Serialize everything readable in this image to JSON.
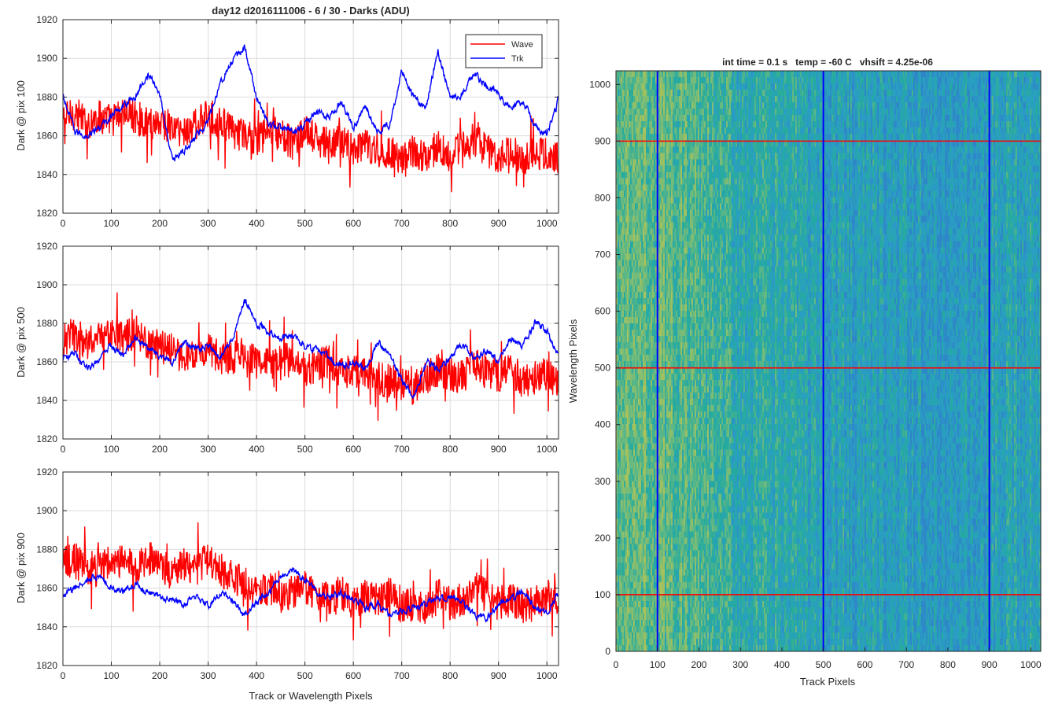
{
  "figure_title": "day12 d2016111006 - 6 / 30 - Darks (ADU)",
  "chart_data": [
    {
      "type": "line",
      "id": "dark-pix-100",
      "title": "day12 d2016111006 - 6 / 30 - Darks (ADU)",
      "xlabel": "",
      "ylabel": "Dark @ pix 100",
      "xlim": [
        0,
        1024
      ],
      "ylim": [
        1820,
        1920
      ],
      "xticks": [
        0,
        100,
        200,
        300,
        400,
        500,
        600,
        700,
        800,
        900,
        1000
      ],
      "yticks": [
        1820,
        1840,
        1860,
        1880,
        1900,
        1920
      ],
      "grid": true,
      "legend": "top-right",
      "series": [
        {
          "name": "Wave",
          "color": "#ff0000",
          "x": [
            0,
            25,
            50,
            75,
            100,
            125,
            150,
            175,
            200,
            225,
            250,
            275,
            300,
            325,
            350,
            375,
            400,
            425,
            450,
            475,
            500,
            525,
            550,
            575,
            600,
            625,
            650,
            675,
            700,
            725,
            750,
            775,
            800,
            825,
            850,
            875,
            900,
            925,
            950,
            975,
            1000,
            1023
          ],
          "y": [
            1868,
            1872,
            1866,
            1870,
            1868,
            1872,
            1870,
            1866,
            1868,
            1864,
            1862,
            1866,
            1870,
            1868,
            1862,
            1860,
            1858,
            1862,
            1860,
            1856,
            1862,
            1858,
            1855,
            1858,
            1852,
            1856,
            1850,
            1852,
            1848,
            1852,
            1850,
            1854,
            1850,
            1854,
            1858,
            1852,
            1850,
            1852,
            1848,
            1852,
            1850,
            1848
          ],
          "noise": 9
        },
        {
          "name": "Trk",
          "color": "#0000ff",
          "x": [
            0,
            25,
            50,
            75,
            100,
            125,
            150,
            175,
            200,
            225,
            250,
            275,
            300,
            325,
            350,
            375,
            400,
            425,
            450,
            475,
            500,
            525,
            550,
            575,
            600,
            625,
            650,
            675,
            700,
            725,
            750,
            775,
            800,
            825,
            850,
            875,
            900,
            925,
            950,
            975,
            1000,
            1023
          ],
          "y": [
            1880,
            1862,
            1860,
            1864,
            1870,
            1876,
            1880,
            1892,
            1882,
            1848,
            1852,
            1860,
            1868,
            1888,
            1898,
            1906,
            1880,
            1866,
            1864,
            1862,
            1866,
            1872,
            1870,
            1878,
            1864,
            1876,
            1862,
            1866,
            1894,
            1880,
            1874,
            1904,
            1880,
            1882,
            1892,
            1886,
            1882,
            1874,
            1878,
            1866,
            1860,
            1878
          ],
          "noise": 3
        }
      ]
    },
    {
      "type": "line",
      "id": "dark-pix-500",
      "title": "",
      "xlabel": "",
      "ylabel": "Dark @ pix 500",
      "xlim": [
        0,
        1024
      ],
      "ylim": [
        1820,
        1920
      ],
      "xticks": [
        0,
        100,
        200,
        300,
        400,
        500,
        600,
        700,
        800,
        900,
        1000
      ],
      "yticks": [
        1820,
        1840,
        1860,
        1880,
        1900,
        1920
      ],
      "grid": true,
      "series": [
        {
          "name": "Wave",
          "color": "#ff0000",
          "x": [
            0,
            25,
            50,
            75,
            100,
            125,
            150,
            175,
            200,
            225,
            250,
            275,
            300,
            325,
            350,
            375,
            400,
            425,
            450,
            475,
            500,
            525,
            550,
            575,
            600,
            625,
            650,
            675,
            700,
            725,
            750,
            775,
            800,
            825,
            850,
            875,
            900,
            925,
            950,
            975,
            1000,
            1023
          ],
          "y": [
            1872,
            1874,
            1870,
            1872,
            1874,
            1872,
            1876,
            1870,
            1868,
            1866,
            1862,
            1864,
            1866,
            1862,
            1862,
            1864,
            1860,
            1858,
            1862,
            1860,
            1856,
            1858,
            1860,
            1854,
            1856,
            1854,
            1852,
            1850,
            1848,
            1846,
            1852,
            1856,
            1854,
            1852,
            1858,
            1856,
            1852,
            1856,
            1850,
            1852,
            1854,
            1850
          ],
          "noise": 9
        },
        {
          "name": "Trk",
          "color": "#0000ff",
          "x": [
            0,
            25,
            50,
            75,
            100,
            125,
            150,
            175,
            200,
            225,
            250,
            275,
            300,
            325,
            350,
            375,
            400,
            425,
            450,
            475,
            500,
            525,
            550,
            575,
            600,
            625,
            650,
            675,
            700,
            725,
            750,
            775,
            800,
            825,
            850,
            875,
            900,
            925,
            950,
            975,
            1000,
            1023
          ],
          "y": [
            1862,
            1864,
            1856,
            1862,
            1868,
            1864,
            1872,
            1868,
            1864,
            1860,
            1870,
            1866,
            1868,
            1862,
            1872,
            1892,
            1880,
            1876,
            1872,
            1874,
            1868,
            1866,
            1862,
            1858,
            1860,
            1856,
            1870,
            1864,
            1850,
            1842,
            1860,
            1856,
            1862,
            1870,
            1862,
            1866,
            1860,
            1872,
            1868,
            1880,
            1876,
            1864
          ],
          "noise": 3
        }
      ]
    },
    {
      "type": "line",
      "id": "dark-pix-900",
      "title": "",
      "xlabel": "Track or Wavelength Pixels",
      "ylabel": "Dark @ pix 900",
      "xlim": [
        0,
        1024
      ],
      "ylim": [
        1820,
        1920
      ],
      "xticks": [
        0,
        100,
        200,
        300,
        400,
        500,
        600,
        700,
        800,
        900,
        1000
      ],
      "yticks": [
        1820,
        1840,
        1860,
        1880,
        1900,
        1920
      ],
      "grid": true,
      "series": [
        {
          "name": "Wave",
          "color": "#ff0000",
          "x": [
            0,
            25,
            50,
            75,
            100,
            125,
            150,
            175,
            200,
            225,
            250,
            275,
            300,
            325,
            350,
            375,
            400,
            425,
            450,
            475,
            500,
            525,
            550,
            575,
            600,
            625,
            650,
            675,
            700,
            725,
            750,
            775,
            800,
            825,
            850,
            875,
            900,
            925,
            950,
            975,
            1000,
            1023
          ],
          "y": [
            1872,
            1876,
            1870,
            1874,
            1872,
            1874,
            1870,
            1876,
            1872,
            1868,
            1872,
            1870,
            1874,
            1870,
            1866,
            1862,
            1858,
            1860,
            1856,
            1858,
            1860,
            1856,
            1854,
            1858,
            1852,
            1856,
            1854,
            1858,
            1850,
            1852,
            1848,
            1856,
            1852,
            1854,
            1860,
            1856,
            1852,
            1854,
            1850,
            1852,
            1856,
            1852
          ],
          "noise": 9
        },
        {
          "name": "Trk",
          "color": "#0000ff",
          "x": [
            0,
            25,
            50,
            75,
            100,
            125,
            150,
            175,
            200,
            225,
            250,
            275,
            300,
            325,
            350,
            375,
            400,
            425,
            450,
            475,
            500,
            525,
            550,
            575,
            600,
            625,
            650,
            675,
            700,
            725,
            750,
            775,
            800,
            825,
            850,
            875,
            900,
            925,
            950,
            975,
            1000,
            1023
          ],
          "y": [
            1856,
            1860,
            1864,
            1866,
            1860,
            1858,
            1862,
            1858,
            1856,
            1854,
            1852,
            1856,
            1850,
            1858,
            1854,
            1846,
            1852,
            1858,
            1866,
            1870,
            1864,
            1858,
            1854,
            1858,
            1854,
            1850,
            1852,
            1846,
            1848,
            1850,
            1852,
            1854,
            1856,
            1852,
            1846,
            1844,
            1852,
            1854,
            1858,
            1850,
            1848,
            1858
          ],
          "noise": 3
        }
      ]
    },
    {
      "type": "heatmap",
      "id": "dark-frame-image",
      "title": "int time = 0.1 s   temp = -60 C   vhsift = 4.25e-06",
      "xlabel": "Track Pixels",
      "ylabel": "Wavelength Pixels",
      "xlim": [
        0,
        1024
      ],
      "ylim": [
        0,
        1024
      ],
      "xticks": [
        0,
        100,
        200,
        300,
        400,
        500,
        600,
        700,
        800,
        900,
        1000
      ],
      "yticks": [
        0,
        100,
        200,
        300,
        400,
        500,
        600,
        700,
        800,
        900,
        1000
      ],
      "colormap": [
        "#2e86c8",
        "#2a9ec4",
        "#25ab9e",
        "#6cba7f",
        "#a9c25a"
      ],
      "track_profile": {
        "x": [
          0,
          50,
          100,
          150,
          200,
          300,
          400,
          500,
          600,
          700,
          800,
          900,
          1024
        ],
        "level": [
          0.68,
          0.72,
          0.7,
          0.66,
          0.58,
          0.44,
          0.4,
          0.34,
          0.28,
          0.24,
          0.2,
          0.26,
          0.36
        ]
      },
      "marker_columns": {
        "values": [
          100,
          500,
          900
        ],
        "color": "#0000ff"
      },
      "marker_rows": {
        "values": [
          100,
          500,
          900
        ],
        "color": "#ff0000"
      }
    }
  ]
}
